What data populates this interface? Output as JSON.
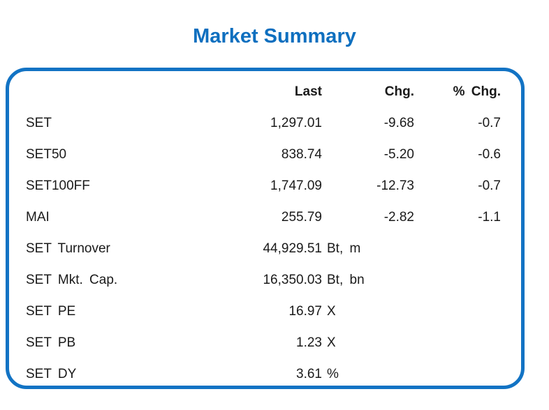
{
  "title": "Market Summary",
  "colors": {
    "title_blue": "#0e6fbf",
    "border_blue": "#1273c4",
    "text": "#1a1a1a"
  },
  "chart_data": {
    "type": "table",
    "title": "Market Summary",
    "columns": [
      "",
      "Last",
      "Chg.",
      "% Chg."
    ],
    "header": {
      "last": "Last",
      "chg": "Chg.",
      "pchg": "% Chg."
    },
    "rows": [
      {
        "label": "SET",
        "last": "1,297.01",
        "unit": "",
        "chg": "-9.68",
        "pchg": "-0.7"
      },
      {
        "label": "SET50",
        "last": "838.74",
        "unit": "",
        "chg": "-5.20",
        "pchg": "-0.6"
      },
      {
        "label": "SET100FF",
        "last": "1,747.09",
        "unit": "",
        "chg": "-12.73",
        "pchg": "-0.7"
      },
      {
        "label": "MAI",
        "last": "255.79",
        "unit": "",
        "chg": "-2.82",
        "pchg": "-1.1"
      },
      {
        "label": "SET Turnover",
        "last": "44,929.51",
        "unit": "Bt, m",
        "chg": "",
        "pchg": ""
      },
      {
        "label": "SET Mkt. Cap.",
        "last": "16,350.03",
        "unit": "Bt, bn",
        "chg": "",
        "pchg": ""
      },
      {
        "label": "SET PE",
        "last": "16.97",
        "unit": "X",
        "chg": "",
        "pchg": ""
      },
      {
        "label": "SET PB",
        "last": "1.23",
        "unit": "X",
        "chg": "",
        "pchg": ""
      },
      {
        "label": "SET DY",
        "last": "3.61",
        "unit": "%",
        "chg": "",
        "pchg": ""
      }
    ]
  }
}
